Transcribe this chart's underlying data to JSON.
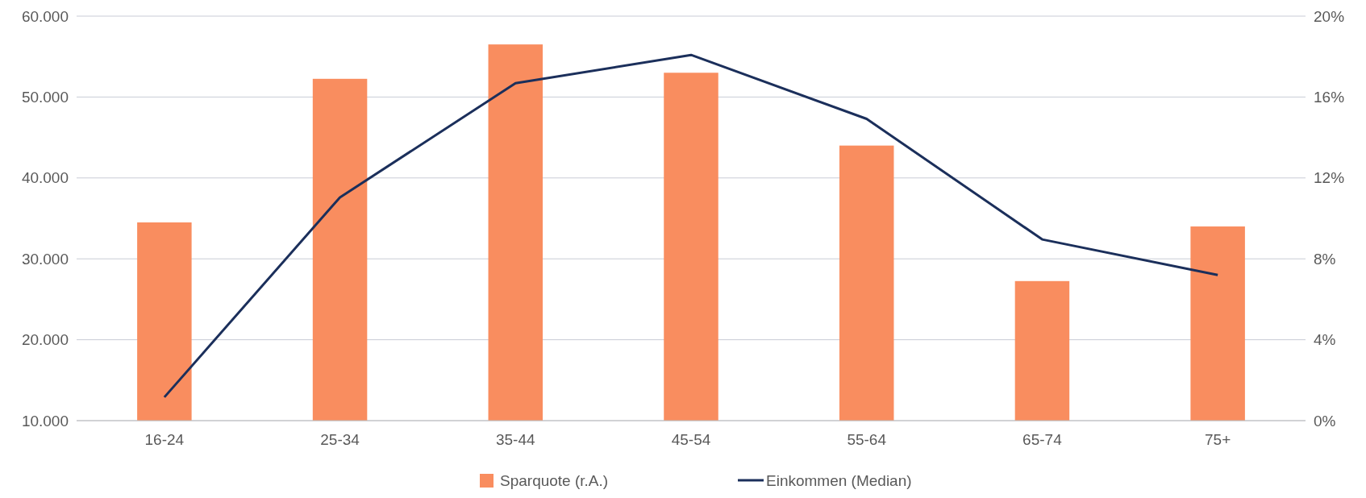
{
  "chart_data": {
    "type": "bar",
    "categories": [
      "16-24",
      "25-34",
      "35-44",
      "45-54",
      "55-64",
      "65-74",
      "75+"
    ],
    "series": [
      {
        "name": "Sparquote (r.A.)",
        "axis": "y2",
        "color": "#f98d5f",
        "values": [
          9.8,
          16.9,
          18.6,
          17.2,
          13.6,
          6.9,
          9.6
        ]
      },
      {
        "name": "Einkommen (Median)",
        "type": "line",
        "color": "#1b2f5b",
        "values": [
          12900,
          37600,
          51700,
          55200,
          47300,
          32400,
          28000
        ]
      }
    ],
    "ylim": [
      10000,
      60000
    ],
    "yticks": [
      {
        "value": 10000,
        "label": "10.000"
      },
      {
        "value": 20000,
        "label": "20.000"
      },
      {
        "value": 30000,
        "label": "30.000"
      },
      {
        "value": 40000,
        "label": "40.000"
      },
      {
        "value": 50000,
        "label": "50.000"
      },
      {
        "value": 60000,
        "label": "60.000"
      }
    ],
    "y2lim": [
      0,
      20
    ],
    "y2ticks": [
      {
        "value": 0,
        "label": "0%"
      },
      {
        "value": 4,
        "label": "4%"
      },
      {
        "value": 8,
        "label": "8%"
      },
      {
        "value": 12,
        "label": "12%"
      },
      {
        "value": 16,
        "label": "16%"
      },
      {
        "value": 20,
        "label": "20%"
      }
    ],
    "grid": "y",
    "legend": "bottom",
    "marker": "none",
    "line_style": "solid"
  }
}
